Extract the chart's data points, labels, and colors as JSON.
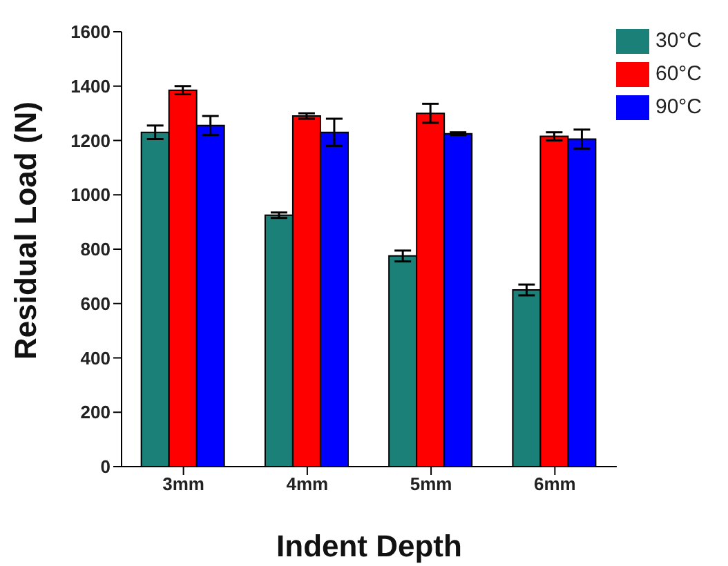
{
  "chart_data": {
    "type": "bar",
    "xlabel": "Indent Depth",
    "ylabel": "Residual Load (N)",
    "categories": [
      "3mm",
      "4mm",
      "5mm",
      "6mm"
    ],
    "series": [
      {
        "name": "30°C",
        "color": "#1a8078",
        "values": [
          1230,
          925,
          775,
          650
        ],
        "errors": [
          25,
          10,
          20,
          20
        ]
      },
      {
        "name": "60°C",
        "color": "#ff0000",
        "values": [
          1385,
          1290,
          1300,
          1215
        ],
        "errors": [
          15,
          10,
          35,
          15
        ]
      },
      {
        "name": "90°C",
        "color": "#0000ff",
        "values": [
          1255,
          1230,
          1225,
          1205
        ],
        "errors": [
          35,
          50,
          5,
          35
        ]
      }
    ],
    "ylim": [
      0,
      1600
    ],
    "yticks": [
      0,
      200,
      400,
      600,
      800,
      1000,
      1200,
      1400,
      1600
    ],
    "grid": false,
    "legend": "top right"
  }
}
